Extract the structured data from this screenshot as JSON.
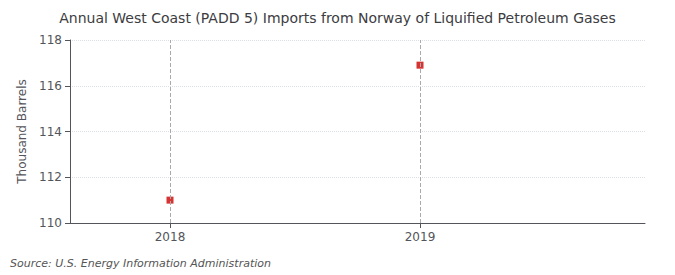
{
  "chart_data": {
    "type": "scatter",
    "title": "Annual West Coast (PADD 5) Imports from Norway of Liquified Petroleum Gases",
    "ylabel": "Thousand Barrels",
    "annotation": "Source: U.S. Energy Information Administration",
    "x": [
      2018,
      2019
    ],
    "values": [
      111.0,
      116.9
    ],
    "color": "#cc0000",
    "marker": "square",
    "xlim": [
      2017.6,
      2019.9
    ],
    "ylim": [
      110,
      118
    ],
    "xticks": [
      2018,
      2019
    ],
    "yticks": [
      110,
      112,
      114,
      116,
      118
    ],
    "grid": true
  }
}
